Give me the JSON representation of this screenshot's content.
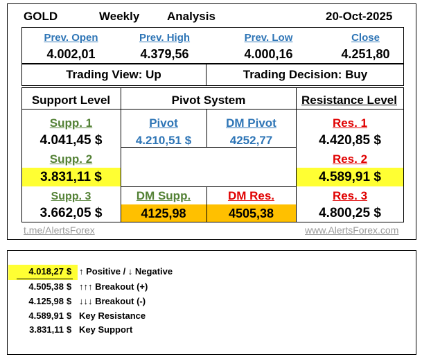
{
  "header": {
    "symbol": "GOLD",
    "period": "Weekly",
    "type": "Analysis",
    "date": "20-Oct-2025"
  },
  "prev": {
    "open_label": "Prev. Open",
    "open_value": "4.002,01",
    "high_label": "Prev. High",
    "high_value": "4.379,56",
    "low_label": "Prev. Low",
    "low_value": "4.000,16",
    "close_label": "Close",
    "close_value": "4.251,80"
  },
  "view": {
    "trading_view": "Trading View:  Up",
    "trading_decision": "Trading Decision:  Buy"
  },
  "columns": {
    "support": "Support Level",
    "pivot_system": "Pivot System",
    "resistance": "Resistance Level"
  },
  "levels": {
    "supp1_label": "Supp. 1",
    "supp1_value": "4.041,45 $",
    "supp2_label": "Supp. 2",
    "supp2_value": "3.831,11 $",
    "supp3_label": "Supp. 3",
    "supp3_value": "3.662,05 $",
    "pivot_label": "Pivot",
    "pivot_value": "4.210,51 $",
    "dm_pivot_label": "DM Pivot",
    "dm_pivot_value": "4252,77",
    "dm_supp_label": "DM Supp.",
    "dm_supp_value": "4125,98",
    "dm_res_label": "DM Res.",
    "dm_res_value": "4505,38",
    "res1_label": "Res. 1",
    "res1_value": "4.420,85 $",
    "res2_label": "Res. 2",
    "res2_value": "4.589,91 $",
    "res3_label": "Res. 3",
    "res3_value": "4.800,25 $"
  },
  "footer": {
    "left_link": "t.me/AlertsForex",
    "right_link": "www.AlertsForex.com"
  },
  "summary": [
    {
      "value": "4.018,27",
      "currency": "$",
      "label": "↑ Positive / ↓ Negative",
      "highlight": true
    },
    {
      "value": "4.505,38",
      "currency": "$",
      "label": "↑↑↑ Breakout (+)",
      "highlight": false
    },
    {
      "value": "4.125,98",
      "currency": "$",
      "label": "↓↓↓ Breakout (-)",
      "highlight": false
    },
    {
      "value": "4.589,91",
      "currency": "$",
      "label": "Key Resistance",
      "highlight": false
    },
    {
      "value": "3.831,11",
      "currency": "$",
      "label": "Key Support",
      "highlight": false
    }
  ],
  "colors": {
    "highlight_yellow": "#ffff33",
    "highlight_orange": "#ffc000",
    "label_blue": "#2e75b6",
    "label_green": "#538135",
    "label_red": "#e00000"
  }
}
